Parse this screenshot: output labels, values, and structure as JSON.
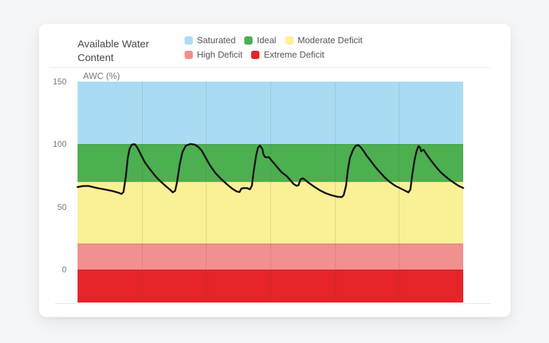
{
  "header": {
    "title_line1": "Available Water",
    "title_line2": "Content"
  },
  "legend": [
    {
      "label": "Saturated",
      "color": "#a9dcf3"
    },
    {
      "label": "Ideal",
      "color": "#4caf50"
    },
    {
      "label": "Moderate Deficit",
      "color": "#faf096"
    },
    {
      "label": "High Deficit",
      "color": "#f0908f"
    },
    {
      "label": "Extreme Deficit",
      "color": "#e62429"
    }
  ],
  "chart_data": {
    "type": "line",
    "title": "AWC (%)",
    "ylabel": "AWC (%)",
    "xlabel": "",
    "ylim": [
      -26,
      150
    ],
    "yticks": [
      0,
      50,
      100,
      150
    ],
    "grid": {
      "vertical_divisions": 6,
      "horizontal": false
    },
    "legend_position": "top",
    "x_unit": "percent of plot width (no x-axis labels shown)",
    "zones": [
      {
        "label": "Saturated",
        "from": 100,
        "to": 150,
        "color": "#a9dcf3"
      },
      {
        "label": "Ideal",
        "from": 70,
        "to": 100,
        "color": "#4caf50"
      },
      {
        "label": "Moderate Deficit",
        "from": 21,
        "to": 70,
        "color": "#faf096"
      },
      {
        "label": "High Deficit",
        "from": 0,
        "to": 21,
        "color": "#f0908f"
      },
      {
        "label": "Extreme Deficit",
        "from": -26,
        "to": 0,
        "color": "#e62429"
      }
    ],
    "series": [
      {
        "name": "AWC (%)",
        "color": "#141414",
        "points": [
          [
            0.0,
            66
          ],
          [
            1.4,
            66.8
          ],
          [
            2.8,
            66.9
          ],
          [
            4.8,
            65.4
          ],
          [
            6.9,
            64.2
          ],
          [
            9.1,
            62.8
          ],
          [
            10.5,
            61.6
          ],
          [
            11.4,
            60.5
          ],
          [
            11.9,
            62
          ],
          [
            12.5,
            74
          ],
          [
            13.0,
            89
          ],
          [
            13.5,
            96.5
          ],
          [
            14.1,
            99.8
          ],
          [
            14.8,
            100.2
          ],
          [
            15.5,
            97.5
          ],
          [
            16.4,
            92
          ],
          [
            17.4,
            86
          ],
          [
            18.7,
            80.5
          ],
          [
            20.1,
            75
          ],
          [
            21.5,
            70.5
          ],
          [
            23.0,
            66.5
          ],
          [
            24.0,
            63.8
          ],
          [
            24.7,
            61.8
          ],
          [
            25.3,
            63
          ],
          [
            25.8,
            70
          ],
          [
            26.5,
            84
          ],
          [
            27.2,
            94
          ],
          [
            28.1,
            99
          ],
          [
            29.2,
            100.3
          ],
          [
            30.4,
            99.8
          ],
          [
            31.3,
            98
          ],
          [
            32.2,
            95
          ],
          [
            33.1,
            90
          ],
          [
            34.3,
            83.5
          ],
          [
            35.8,
            77
          ],
          [
            37.2,
            72.5
          ],
          [
            38.8,
            68
          ],
          [
            40.2,
            64.5
          ],
          [
            41.3,
            62.5
          ],
          [
            42.0,
            62
          ],
          [
            42.5,
            64.8
          ],
          [
            43.2,
            65.3
          ],
          [
            44.0,
            65.1
          ],
          [
            44.7,
            64.2
          ],
          [
            45.2,
            67
          ],
          [
            45.7,
            79
          ],
          [
            46.3,
            91
          ],
          [
            46.8,
            97.5
          ],
          [
            47.3,
            99
          ],
          [
            47.9,
            96.5
          ],
          [
            48.2,
            92
          ],
          [
            48.6,
            90
          ],
          [
            49.1,
            89.6
          ],
          [
            49.6,
            89.9
          ],
          [
            50.2,
            87.5
          ],
          [
            50.9,
            85
          ],
          [
            52.0,
            81
          ],
          [
            53.0,
            77.5
          ],
          [
            54.3,
            74.5
          ],
          [
            55.3,
            71
          ],
          [
            56.0,
            68.5
          ],
          [
            56.8,
            67
          ],
          [
            57.3,
            67.5
          ],
          [
            57.8,
            72
          ],
          [
            58.4,
            73
          ],
          [
            59.1,
            71.5
          ],
          [
            60.1,
            69
          ],
          [
            61.4,
            66.2
          ],
          [
            62.8,
            63.5
          ],
          [
            64.4,
            61
          ],
          [
            66.0,
            59.3
          ],
          [
            67.4,
            58.3
          ],
          [
            68.5,
            58
          ],
          [
            69.0,
            59.5
          ],
          [
            69.6,
            67
          ],
          [
            70.1,
            80
          ],
          [
            70.6,
            89
          ],
          [
            71.4,
            95.5
          ],
          [
            72.1,
            98.8
          ],
          [
            72.8,
            99.5
          ],
          [
            73.5,
            97.5
          ],
          [
            74.2,
            94.5
          ],
          [
            74.9,
            91.3
          ],
          [
            76.0,
            87
          ],
          [
            77.2,
            82
          ],
          [
            78.5,
            77.5
          ],
          [
            79.7,
            73.5
          ],
          [
            81.0,
            70
          ],
          [
            82.4,
            67
          ],
          [
            83.8,
            64.8
          ],
          [
            85.1,
            62.8
          ],
          [
            85.8,
            61.8
          ],
          [
            86.3,
            64
          ],
          [
            86.8,
            76
          ],
          [
            87.4,
            88
          ],
          [
            87.9,
            94.5
          ],
          [
            88.4,
            98.6
          ],
          [
            88.8,
            97.5
          ],
          [
            89.1,
            94.5
          ],
          [
            89.7,
            95.8
          ],
          [
            90.2,
            93.5
          ],
          [
            91.1,
            89.5
          ],
          [
            92.0,
            85.8
          ],
          [
            93.1,
            81.5
          ],
          [
            94.1,
            78
          ],
          [
            95.4,
            74.5
          ],
          [
            96.6,
            71.5
          ],
          [
            97.9,
            68.8
          ],
          [
            98.9,
            66.8
          ],
          [
            100.0,
            65.3
          ]
        ]
      }
    ]
  }
}
